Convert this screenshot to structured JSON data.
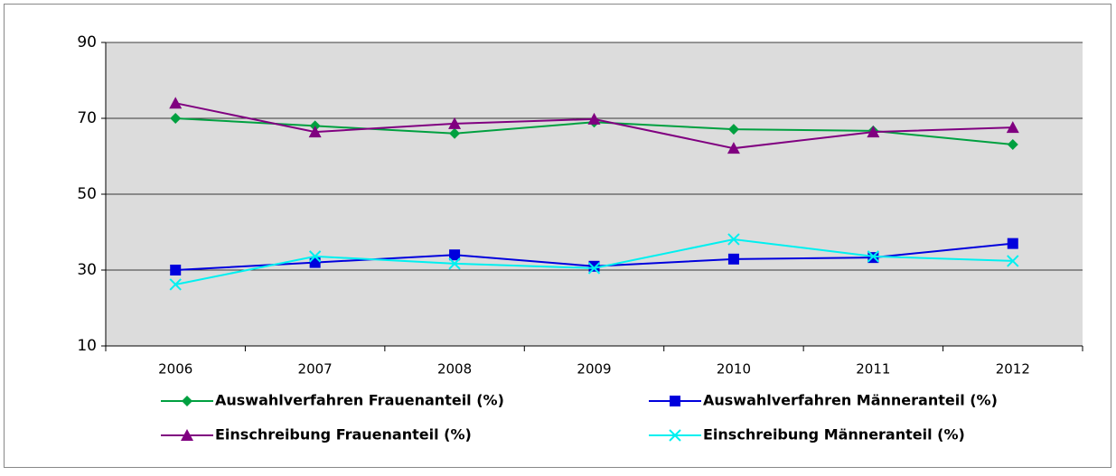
{
  "chart_data": {
    "type": "line",
    "categories": [
      "2006",
      "2007",
      "2008",
      "2009",
      "2010",
      "2011",
      "2012"
    ],
    "series": [
      {
        "name": "Auswahlverfahren Frauenanteil (%)",
        "color": "#00a040",
        "marker": "diamond",
        "values": [
          70,
          68,
          66,
          69,
          67.1,
          66.7,
          63.1
        ]
      },
      {
        "name": "Auswahlverfahren Männeranteil (%)",
        "color": "#0000dd",
        "marker": "square",
        "values": [
          30,
          32,
          34,
          31,
          32.9,
          33.3,
          37
        ]
      },
      {
        "name": "Einschreibung Frauenanteil (%)",
        "color": "#800080",
        "marker": "triangle",
        "values": [
          74,
          66.4,
          68.6,
          69.8,
          62.1,
          66.4,
          67.6
        ]
      },
      {
        "name": "Einschreibung Männeranteil (%)",
        "color": "#00f0f0",
        "marker": "x",
        "values": [
          26.2,
          33.6,
          31.7,
          30.5,
          38.1,
          33.6,
          32.4
        ]
      }
    ],
    "ylim": [
      10,
      90
    ],
    "yticks": [
      10,
      30,
      50,
      70,
      90
    ],
    "grid": true
  }
}
